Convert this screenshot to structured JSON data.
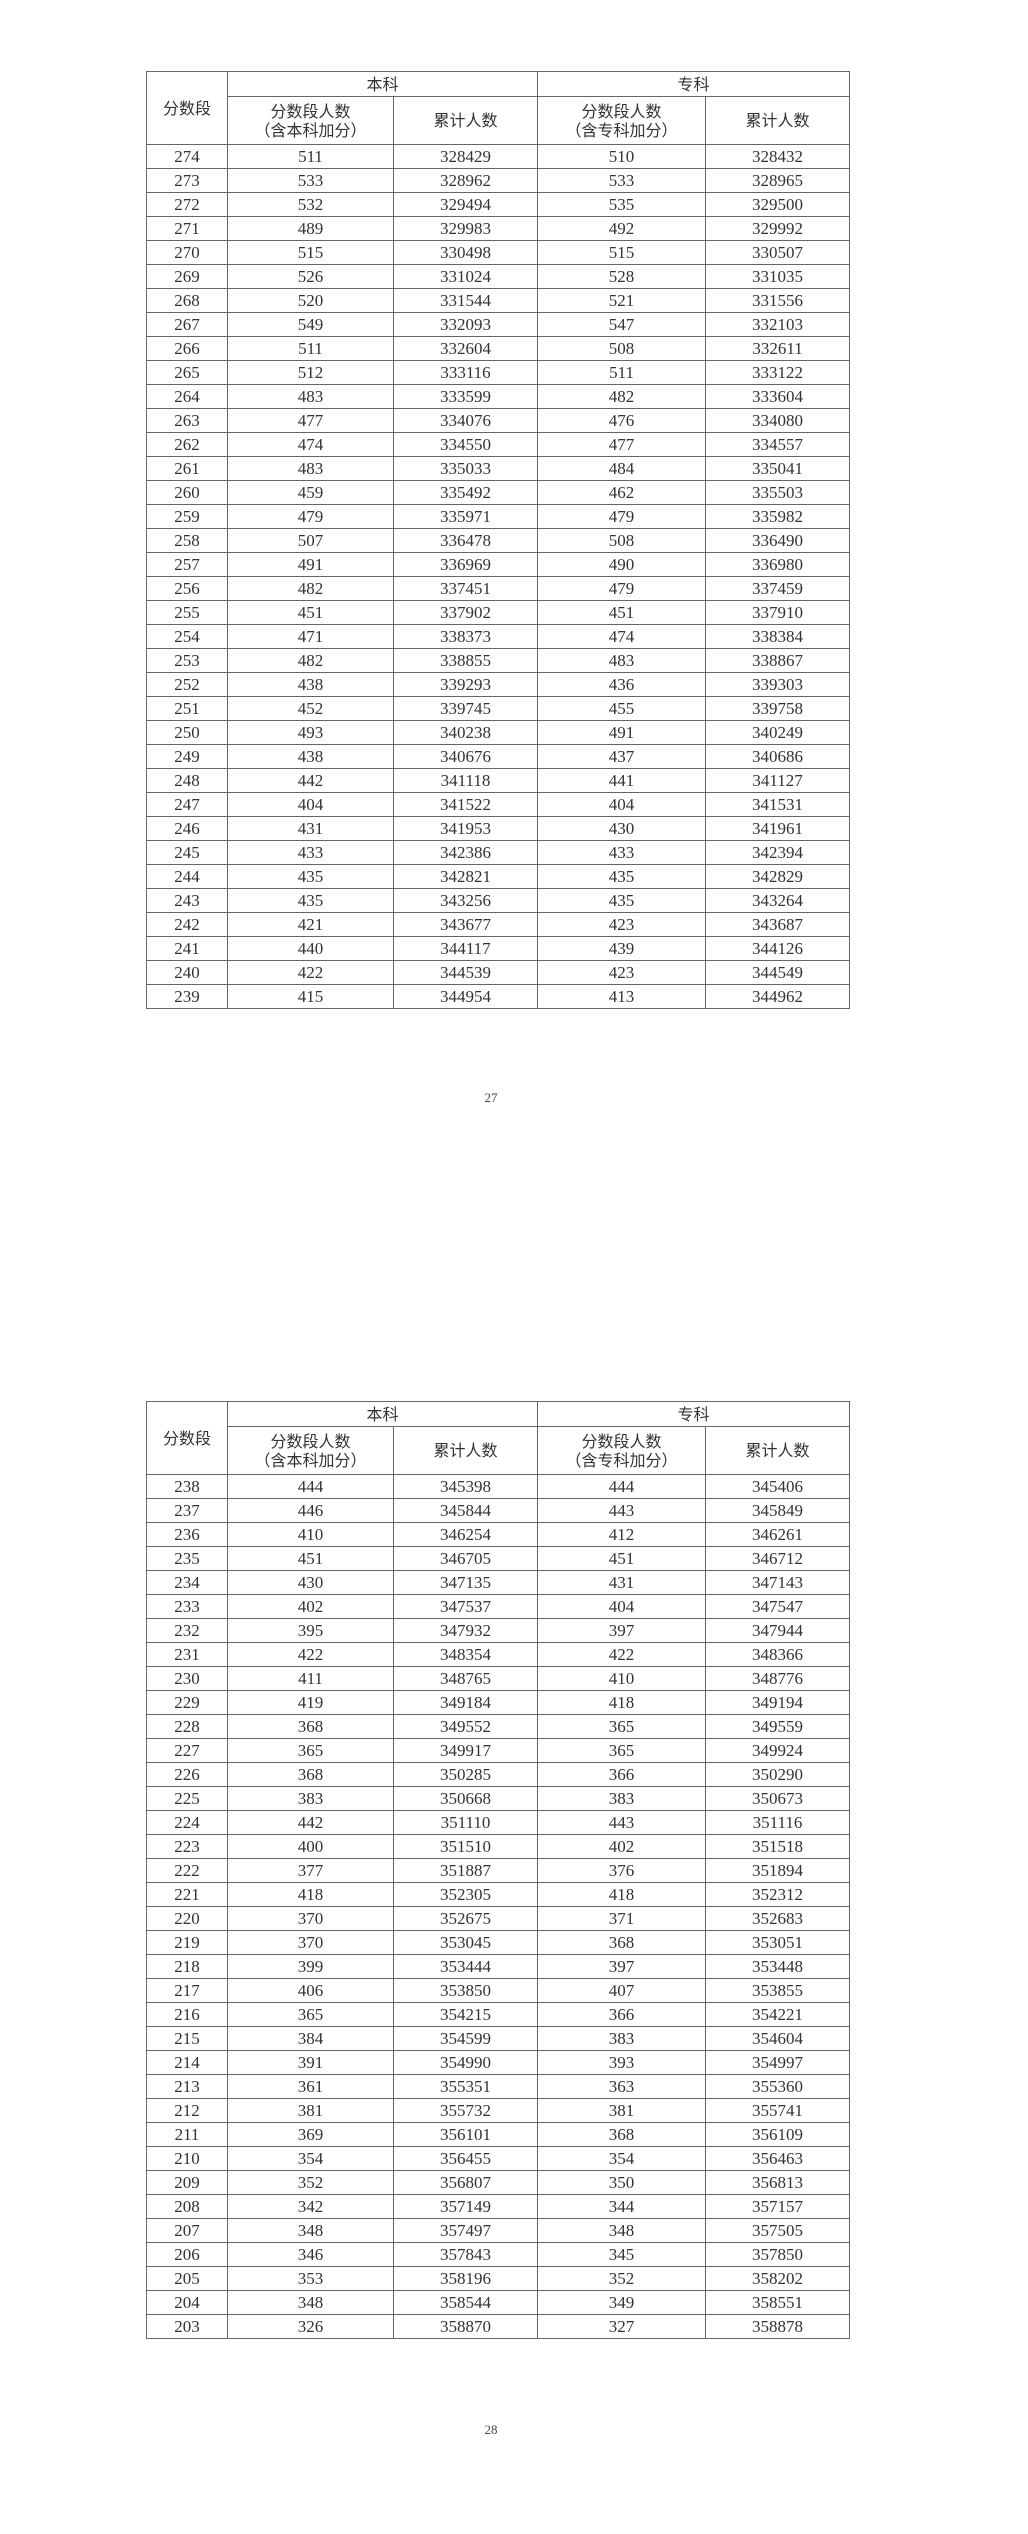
{
  "headers": {
    "score": "分数段",
    "undergrad": "本科",
    "vocational": "专科",
    "undergrad_count": "分数段人数",
    "undergrad_count_note": "（含本科加分）",
    "cumulative": "累计人数",
    "vocational_count": "分数段人数",
    "vocational_count_note": "（含专科加分）"
  },
  "pages": [
    {
      "page_number": "27",
      "rows": [
        [
          "274",
          "511",
          "328429",
          "510",
          "328432"
        ],
        [
          "273",
          "533",
          "328962",
          "533",
          "328965"
        ],
        [
          "272",
          "532",
          "329494",
          "535",
          "329500"
        ],
        [
          "271",
          "489",
          "329983",
          "492",
          "329992"
        ],
        [
          "270",
          "515",
          "330498",
          "515",
          "330507"
        ],
        [
          "269",
          "526",
          "331024",
          "528",
          "331035"
        ],
        [
          "268",
          "520",
          "331544",
          "521",
          "331556"
        ],
        [
          "267",
          "549",
          "332093",
          "547",
          "332103"
        ],
        [
          "266",
          "511",
          "332604",
          "508",
          "332611"
        ],
        [
          "265",
          "512",
          "333116",
          "511",
          "333122"
        ],
        [
          "264",
          "483",
          "333599",
          "482",
          "333604"
        ],
        [
          "263",
          "477",
          "334076",
          "476",
          "334080"
        ],
        [
          "262",
          "474",
          "334550",
          "477",
          "334557"
        ],
        [
          "261",
          "483",
          "335033",
          "484",
          "335041"
        ],
        [
          "260",
          "459",
          "335492",
          "462",
          "335503"
        ],
        [
          "259",
          "479",
          "335971",
          "479",
          "335982"
        ],
        [
          "258",
          "507",
          "336478",
          "508",
          "336490"
        ],
        [
          "257",
          "491",
          "336969",
          "490",
          "336980"
        ],
        [
          "256",
          "482",
          "337451",
          "479",
          "337459"
        ],
        [
          "255",
          "451",
          "337902",
          "451",
          "337910"
        ],
        [
          "254",
          "471",
          "338373",
          "474",
          "338384"
        ],
        [
          "253",
          "482",
          "338855",
          "483",
          "338867"
        ],
        [
          "252",
          "438",
          "339293",
          "436",
          "339303"
        ],
        [
          "251",
          "452",
          "339745",
          "455",
          "339758"
        ],
        [
          "250",
          "493",
          "340238",
          "491",
          "340249"
        ],
        [
          "249",
          "438",
          "340676",
          "437",
          "340686"
        ],
        [
          "248",
          "442",
          "341118",
          "441",
          "341127"
        ],
        [
          "247",
          "404",
          "341522",
          "404",
          "341531"
        ],
        [
          "246",
          "431",
          "341953",
          "430",
          "341961"
        ],
        [
          "245",
          "433",
          "342386",
          "433",
          "342394"
        ],
        [
          "244",
          "435",
          "342821",
          "435",
          "342829"
        ],
        [
          "243",
          "435",
          "343256",
          "435",
          "343264"
        ],
        [
          "242",
          "421",
          "343677",
          "423",
          "343687"
        ],
        [
          "241",
          "440",
          "344117",
          "439",
          "344126"
        ],
        [
          "240",
          "422",
          "344539",
          "423",
          "344549"
        ],
        [
          "239",
          "415",
          "344954",
          "413",
          "344962"
        ]
      ]
    },
    {
      "page_number": "28",
      "rows": [
        [
          "238",
          "444",
          "345398",
          "444",
          "345406"
        ],
        [
          "237",
          "446",
          "345844",
          "443",
          "345849"
        ],
        [
          "236",
          "410",
          "346254",
          "412",
          "346261"
        ],
        [
          "235",
          "451",
          "346705",
          "451",
          "346712"
        ],
        [
          "234",
          "430",
          "347135",
          "431",
          "347143"
        ],
        [
          "233",
          "402",
          "347537",
          "404",
          "347547"
        ],
        [
          "232",
          "395",
          "347932",
          "397",
          "347944"
        ],
        [
          "231",
          "422",
          "348354",
          "422",
          "348366"
        ],
        [
          "230",
          "411",
          "348765",
          "410",
          "348776"
        ],
        [
          "229",
          "419",
          "349184",
          "418",
          "349194"
        ],
        [
          "228",
          "368",
          "349552",
          "365",
          "349559"
        ],
        [
          "227",
          "365",
          "349917",
          "365",
          "349924"
        ],
        [
          "226",
          "368",
          "350285",
          "366",
          "350290"
        ],
        [
          "225",
          "383",
          "350668",
          "383",
          "350673"
        ],
        [
          "224",
          "442",
          "351110",
          "443",
          "351116"
        ],
        [
          "223",
          "400",
          "351510",
          "402",
          "351518"
        ],
        [
          "222",
          "377",
          "351887",
          "376",
          "351894"
        ],
        [
          "221",
          "418",
          "352305",
          "418",
          "352312"
        ],
        [
          "220",
          "370",
          "352675",
          "371",
          "352683"
        ],
        [
          "219",
          "370",
          "353045",
          "368",
          "353051"
        ],
        [
          "218",
          "399",
          "353444",
          "397",
          "353448"
        ],
        [
          "217",
          "406",
          "353850",
          "407",
          "353855"
        ],
        [
          "216",
          "365",
          "354215",
          "366",
          "354221"
        ],
        [
          "215",
          "384",
          "354599",
          "383",
          "354604"
        ],
        [
          "214",
          "391",
          "354990",
          "393",
          "354997"
        ],
        [
          "213",
          "361",
          "355351",
          "363",
          "355360"
        ],
        [
          "212",
          "381",
          "355732",
          "381",
          "355741"
        ],
        [
          "211",
          "369",
          "356101",
          "368",
          "356109"
        ],
        [
          "210",
          "354",
          "356455",
          "354",
          "356463"
        ],
        [
          "209",
          "352",
          "356807",
          "350",
          "356813"
        ],
        [
          "208",
          "342",
          "357149",
          "344",
          "357157"
        ],
        [
          "207",
          "348",
          "357497",
          "348",
          "357505"
        ],
        [
          "206",
          "346",
          "357843",
          "345",
          "357850"
        ],
        [
          "205",
          "353",
          "358196",
          "352",
          "358202"
        ],
        [
          "204",
          "348",
          "358544",
          "349",
          "358551"
        ],
        [
          "203",
          "326",
          "358870",
          "327",
          "358878"
        ]
      ]
    }
  ]
}
